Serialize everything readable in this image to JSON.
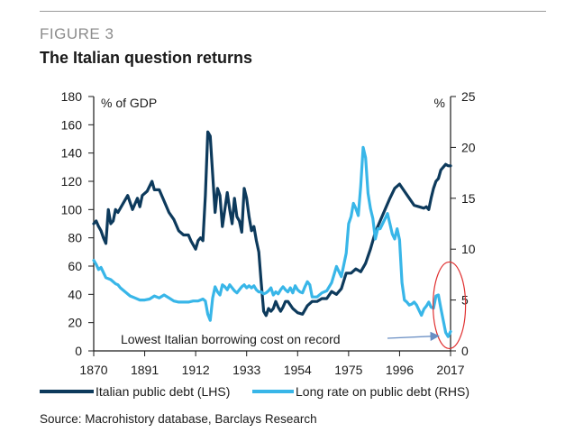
{
  "figure_label": "FIGURE 3",
  "title": "The Italian question returns",
  "source": "Source: Macrohistory database, Barclays Research",
  "colors": {
    "debt": "#0d3a5c",
    "rate": "#38b6e8",
    "highlight": "#e03030",
    "arrow": "#6a8fc4",
    "axis": "#1a1a1a"
  },
  "chart_data": {
    "type": "line",
    "title": "The Italian question returns",
    "xlim": [
      1870,
      2017
    ],
    "x_ticks": [
      "1870",
      "1891",
      "1912",
      "1933",
      "1954",
      "1975",
      "1996",
      "2017"
    ],
    "left_axis": {
      "label": "% of GDP",
      "ylim": [
        0,
        180
      ],
      "ticks": [
        "0",
        "20",
        "40",
        "60",
        "80",
        "100",
        "120",
        "140",
        "160",
        "180"
      ]
    },
    "right_axis": {
      "label": "%",
      "ylim": [
        0,
        25
      ],
      "ticks": [
        "0",
        "5",
        "10",
        "15",
        "20",
        "25"
      ]
    },
    "annotation": "Lowest Italian borrowing cost on record",
    "annotation_target": {
      "x": 2015,
      "y_right": 2
    },
    "series": [
      {
        "name": "Italian public debt (LHS)",
        "axis": "left",
        "x": [
          1870,
          1871,
          1872,
          1873,
          1874,
          1875,
          1876,
          1877,
          1878,
          1879,
          1880,
          1882,
          1884,
          1886,
          1888,
          1889,
          1890,
          1892,
          1894,
          1895,
          1897,
          1899,
          1901,
          1903,
          1905,
          1907,
          1909,
          1910,
          1912,
          1913,
          1914,
          1915,
          1916,
          1917,
          1918,
          1919,
          1920,
          1921,
          1922,
          1923,
          1924,
          1925,
          1926,
          1927,
          1928,
          1929,
          1930,
          1931,
          1932,
          1933,
          1934,
          1935,
          1936,
          1937,
          1938,
          1939,
          1940,
          1941,
          1942,
          1943,
          1944,
          1945,
          1946,
          1947,
          1948,
          1949,
          1950,
          1952,
          1954,
          1956,
          1958,
          1960,
          1962,
          1964,
          1966,
          1968,
          1970,
          1972,
          1974,
          1976,
          1978,
          1980,
          1982,
          1984,
          1986,
          1988,
          1990,
          1992,
          1994,
          1996,
          1998,
          2000,
          2002,
          2004,
          2006,
          2007,
          2008,
          2009,
          2010,
          2011,
          2012,
          2013,
          2014,
          2015,
          2016,
          2017
        ],
        "values": [
          90,
          92,
          88,
          85,
          80,
          76,
          100,
          90,
          92,
          100,
          98,
          104,
          110,
          100,
          108,
          102,
          110,
          113,
          120,
          114,
          114,
          106,
          98,
          93,
          85,
          82,
          82,
          78,
          72,
          78,
          80,
          78,
          110,
          155,
          152,
          125,
          98,
          115,
          110,
          88,
          100,
          112,
          100,
          90,
          108,
          95,
          92,
          84,
          115,
          108,
          95,
          85,
          88,
          78,
          70,
          48,
          28,
          25,
          30,
          28,
          30,
          35,
          31,
          28,
          31,
          35,
          35,
          30,
          27,
          26,
          32,
          35,
          35,
          37,
          37,
          42,
          40,
          44,
          55,
          55,
          58,
          56,
          62,
          72,
          84,
          92,
          100,
          108,
          115,
          118,
          113,
          108,
          103,
          102,
          101,
          102,
          100,
          108,
          115,
          120,
          122,
          128,
          130,
          132,
          131,
          131
        ]
      },
      {
        "name": "Long rate on public debt (RHS)",
        "axis": "right",
        "x": [
          1870,
          1871,
          1872,
          1873,
          1875,
          1877,
          1879,
          1880,
          1881,
          1883,
          1885,
          1887,
          1889,
          1891,
          1893,
          1895,
          1897,
          1899,
          1901,
          1903,
          1905,
          1907,
          1909,
          1911,
          1913,
          1914,
          1915,
          1916,
          1917,
          1918,
          1919,
          1920,
          1921,
          1922,
          1923,
          1924,
          1925,
          1926,
          1927,
          1928,
          1929,
          1930,
          1931,
          1932,
          1933,
          1934,
          1935,
          1936,
          1937,
          1938,
          1939,
          1940,
          1941,
          1942,
          1943,
          1944,
          1945,
          1946,
          1947,
          1948,
          1949,
          1950,
          1951,
          1952,
          1953,
          1954,
          1955,
          1956,
          1957,
          1958,
          1959,
          1960,
          1962,
          1964,
          1966,
          1968,
          1970,
          1972,
          1974,
          1975,
          1976,
          1977,
          1978,
          1979,
          1980,
          1981,
          1982,
          1983,
          1984,
          1985,
          1986,
          1987,
          1988,
          1989,
          1990,
          1991,
          1992,
          1993,
          1994,
          1995,
          1996,
          1997,
          1998,
          1999,
          2000,
          2001,
          2002,
          2003,
          2004,
          2005,
          2006,
          2007,
          2008,
          2009,
          2010,
          2011,
          2012,
          2013,
          2014,
          2015,
          2016,
          2017
        ],
        "values": [
          8.9,
          8.5,
          8,
          8.2,
          7.2,
          7,
          6.6,
          6.5,
          6.2,
          5.8,
          5.4,
          5.2,
          5,
          5,
          5.1,
          5.4,
          5.2,
          5.5,
          5.2,
          4.9,
          4.8,
          4.8,
          4.8,
          4.9,
          4.9,
          5,
          5.1,
          4.9,
          3.6,
          3,
          5.2,
          6.3,
          5.8,
          5.5,
          6.5,
          6.3,
          6,
          6.5,
          6.2,
          5.9,
          5.7,
          6,
          6.3,
          6.5,
          6.2,
          6.4,
          6.2,
          6.4,
          6,
          5.8,
          5.8,
          5.6,
          5.7,
          5.9,
          6.2,
          5.5,
          5.8,
          5.6,
          6,
          6.3,
          6,
          5.8,
          6.2,
          5.7,
          6.4,
          6,
          5.8,
          5.7,
          6.3,
          6.8,
          6.5,
          5.3,
          5.3,
          5.7,
          5.9,
          6.7,
          8.3,
          7.3,
          9.6,
          12.5,
          13.2,
          14.5,
          14,
          13.3,
          16.2,
          20,
          19,
          15.5,
          14,
          13,
          11,
          12,
          12,
          12.5,
          13,
          13.5,
          12.5,
          11.5,
          11,
          12,
          10.9,
          6.7,
          5,
          4.8,
          4.5,
          4.6,
          4.8,
          4.5,
          4,
          3.5,
          4.1,
          4.4,
          4.8,
          4.3,
          4.2,
          5.4,
          5.5,
          4.2,
          3,
          1.8,
          1.4,
          1.9
        ]
      }
    ],
    "legend": [
      "Italian public debt (LHS)",
      "Long rate on public debt (RHS)"
    ],
    "legend_position": "bottom"
  }
}
